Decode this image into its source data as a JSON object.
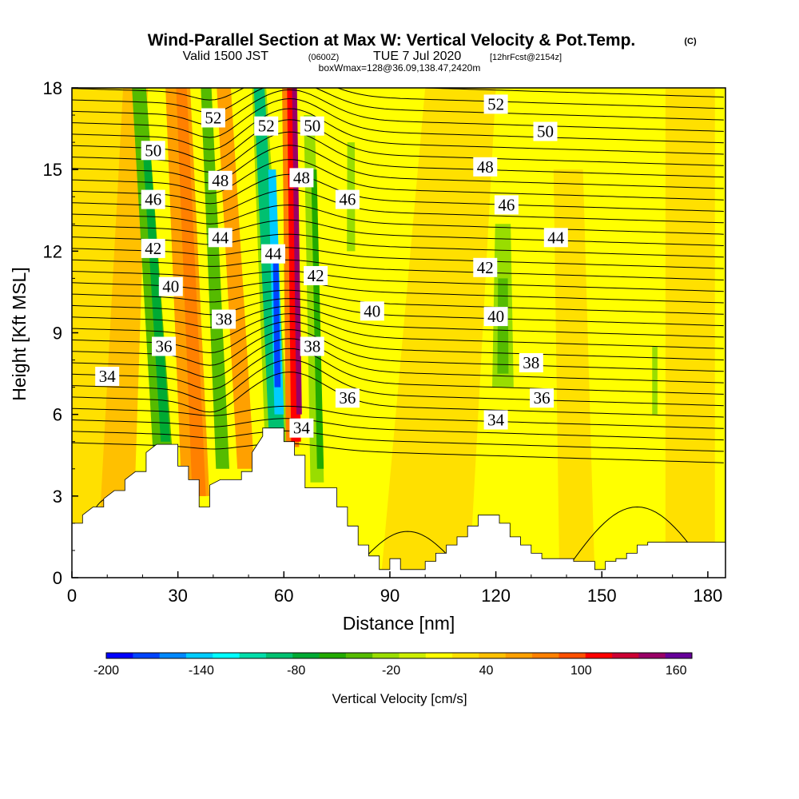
{
  "header": {
    "title_main": "Wind-Parallel Section at Max W: Vertical Velocity & Pot.Temp.",
    "title_mark": "(C)",
    "valid_prefix": "Valid 1500 JST",
    "valid_utc": "(0600Z)",
    "valid_date": "TUE 7 Jul 2020",
    "forecast": "[12hrFcst@2154z]",
    "box_info": "boxWmax=128@36.09,138.47,2420m"
  },
  "colors": {
    "levels": [
      "#0000ff",
      "#0044ff",
      "#0088ff",
      "#00ccff",
      "#00ffff",
      "#00ddaa",
      "#00c070",
      "#00aa33",
      "#22aa00",
      "#55bb00",
      "#99dd00",
      "#ccee00",
      "#ffff00",
      "#ffe000",
      "#ffc000",
      "#ffa000",
      "#ff8000",
      "#ff5000",
      "#ff0000",
      "#cc0033",
      "#990066",
      "#660099"
    ],
    "terrain": "#ffffff",
    "contour": "#000000"
  },
  "chart_data": {
    "type": "contour cross-section",
    "xlabel": "Distance [nm]",
    "ylabel": "Height [Kft MSL]",
    "xlim": [
      0,
      185
    ],
    "ylim": [
      0,
      18
    ],
    "xticks": [
      "0",
      "30",
      "60",
      "90",
      "120",
      "150",
      "180"
    ],
    "yticks": [
      "0",
      "3",
      "6",
      "9",
      "12",
      "15",
      "18"
    ],
    "colorbar": {
      "title": "Vertical Velocity [cm/s]",
      "range": [
        -200,
        170
      ],
      "tick_labels": [
        "-200",
        "-140",
        "-80",
        "-20",
        "40",
        "100",
        "160"
      ]
    },
    "theta_contour_labels": [
      {
        "value": "34",
        "x": 10,
        "y": 7.4
      },
      {
        "value": "34",
        "x": 65,
        "y": 5.5
      },
      {
        "value": "34",
        "x": 120,
        "y": 5.8
      },
      {
        "value": "36",
        "x": 26,
        "y": 8.5
      },
      {
        "value": "36",
        "x": 78,
        "y": 6.6
      },
      {
        "value": "36",
        "x": 133,
        "y": 6.6
      },
      {
        "value": "38",
        "x": 43,
        "y": 9.5
      },
      {
        "value": "38",
        "x": 68,
        "y": 8.5
      },
      {
        "value": "38",
        "x": 130,
        "y": 7.9
      },
      {
        "value": "40",
        "x": 28,
        "y": 10.7
      },
      {
        "value": "40",
        "x": 85,
        "y": 9.8
      },
      {
        "value": "40",
        "x": 120,
        "y": 9.6
      },
      {
        "value": "42",
        "x": 23,
        "y": 12.1
      },
      {
        "value": "42",
        "x": 69,
        "y": 11.1
      },
      {
        "value": "42",
        "x": 117,
        "y": 11.4
      },
      {
        "value": "44",
        "x": 42,
        "y": 12.5
      },
      {
        "value": "44",
        "x": 57,
        "y": 11.9
      },
      {
        "value": "44",
        "x": 137,
        "y": 12.5
      },
      {
        "value": "46",
        "x": 23,
        "y": 13.9
      },
      {
        "value": "46",
        "x": 78,
        "y": 13.9
      },
      {
        "value": "46",
        "x": 123,
        "y": 13.7
      },
      {
        "value": "48",
        "x": 42,
        "y": 14.6
      },
      {
        "value": "48",
        "x": 65,
        "y": 14.7
      },
      {
        "value": "48",
        "x": 117,
        "y": 15.1
      },
      {
        "value": "50",
        "x": 23,
        "y": 15.7
      },
      {
        "value": "50",
        "x": 68,
        "y": 16.6
      },
      {
        "value": "50",
        "x": 134,
        "y": 16.4
      },
      {
        "value": "52",
        "x": 40,
        "y": 16.9
      },
      {
        "value": "52",
        "x": 55,
        "y": 16.6
      },
      {
        "value": "52",
        "x": 120,
        "y": 17.4
      }
    ]
  }
}
